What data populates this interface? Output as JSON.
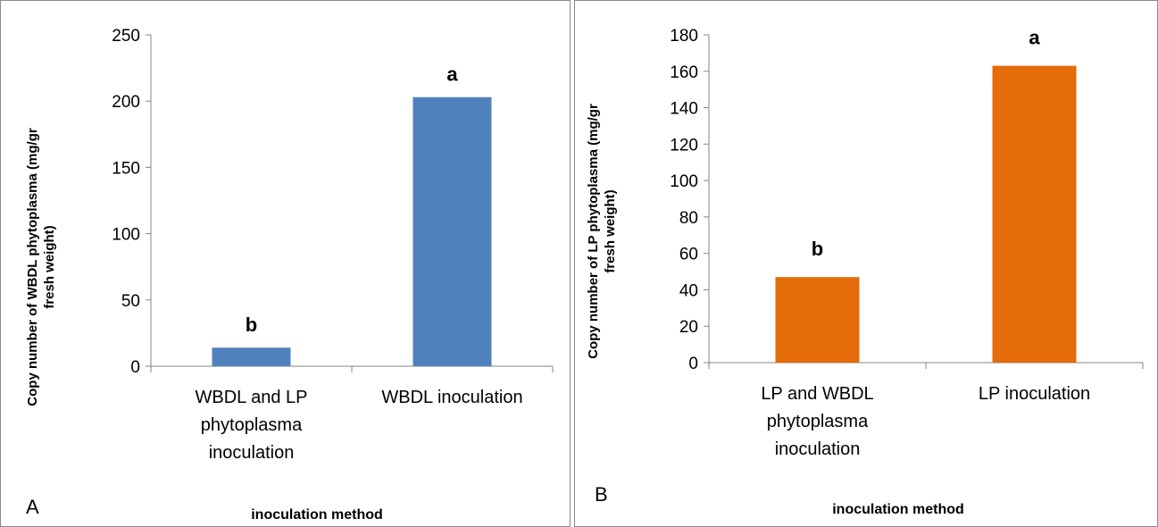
{
  "chart_data": [
    {
      "type": "bar",
      "panel_label": "A",
      "categories": [
        [
          "WBDL and LP",
          "phytoplasma",
          "inoculation"
        ],
        [
          "WBDL inoculation"
        ]
      ],
      "values": [
        14,
        203
      ],
      "significance": [
        "b",
        "a"
      ],
      "ylim": [
        0,
        250
      ],
      "yticks": [
        0,
        50,
        100,
        150,
        200,
        250
      ],
      "ylabel": [
        "Copy number of WBDL phytoplasma (mg/gr",
        "fresh weight)"
      ],
      "xlabel": "inoculation method",
      "color": "#4f81bd"
    },
    {
      "type": "bar",
      "panel_label": "B",
      "categories": [
        [
          "LP and WBDL",
          "phytoplasma",
          "inoculation"
        ],
        [
          "LP inoculation"
        ]
      ],
      "values": [
        47,
        163
      ],
      "significance": [
        "b",
        "a"
      ],
      "ylim": [
        0,
        180
      ],
      "yticks": [
        0,
        20,
        40,
        60,
        80,
        100,
        120,
        140,
        160,
        180
      ],
      "ylabel": [
        "Copy number of LP phytoplasma (mg/gr",
        "fresh weight)"
      ],
      "xlabel": "inoculation method",
      "color": "#e46c0a"
    }
  ]
}
